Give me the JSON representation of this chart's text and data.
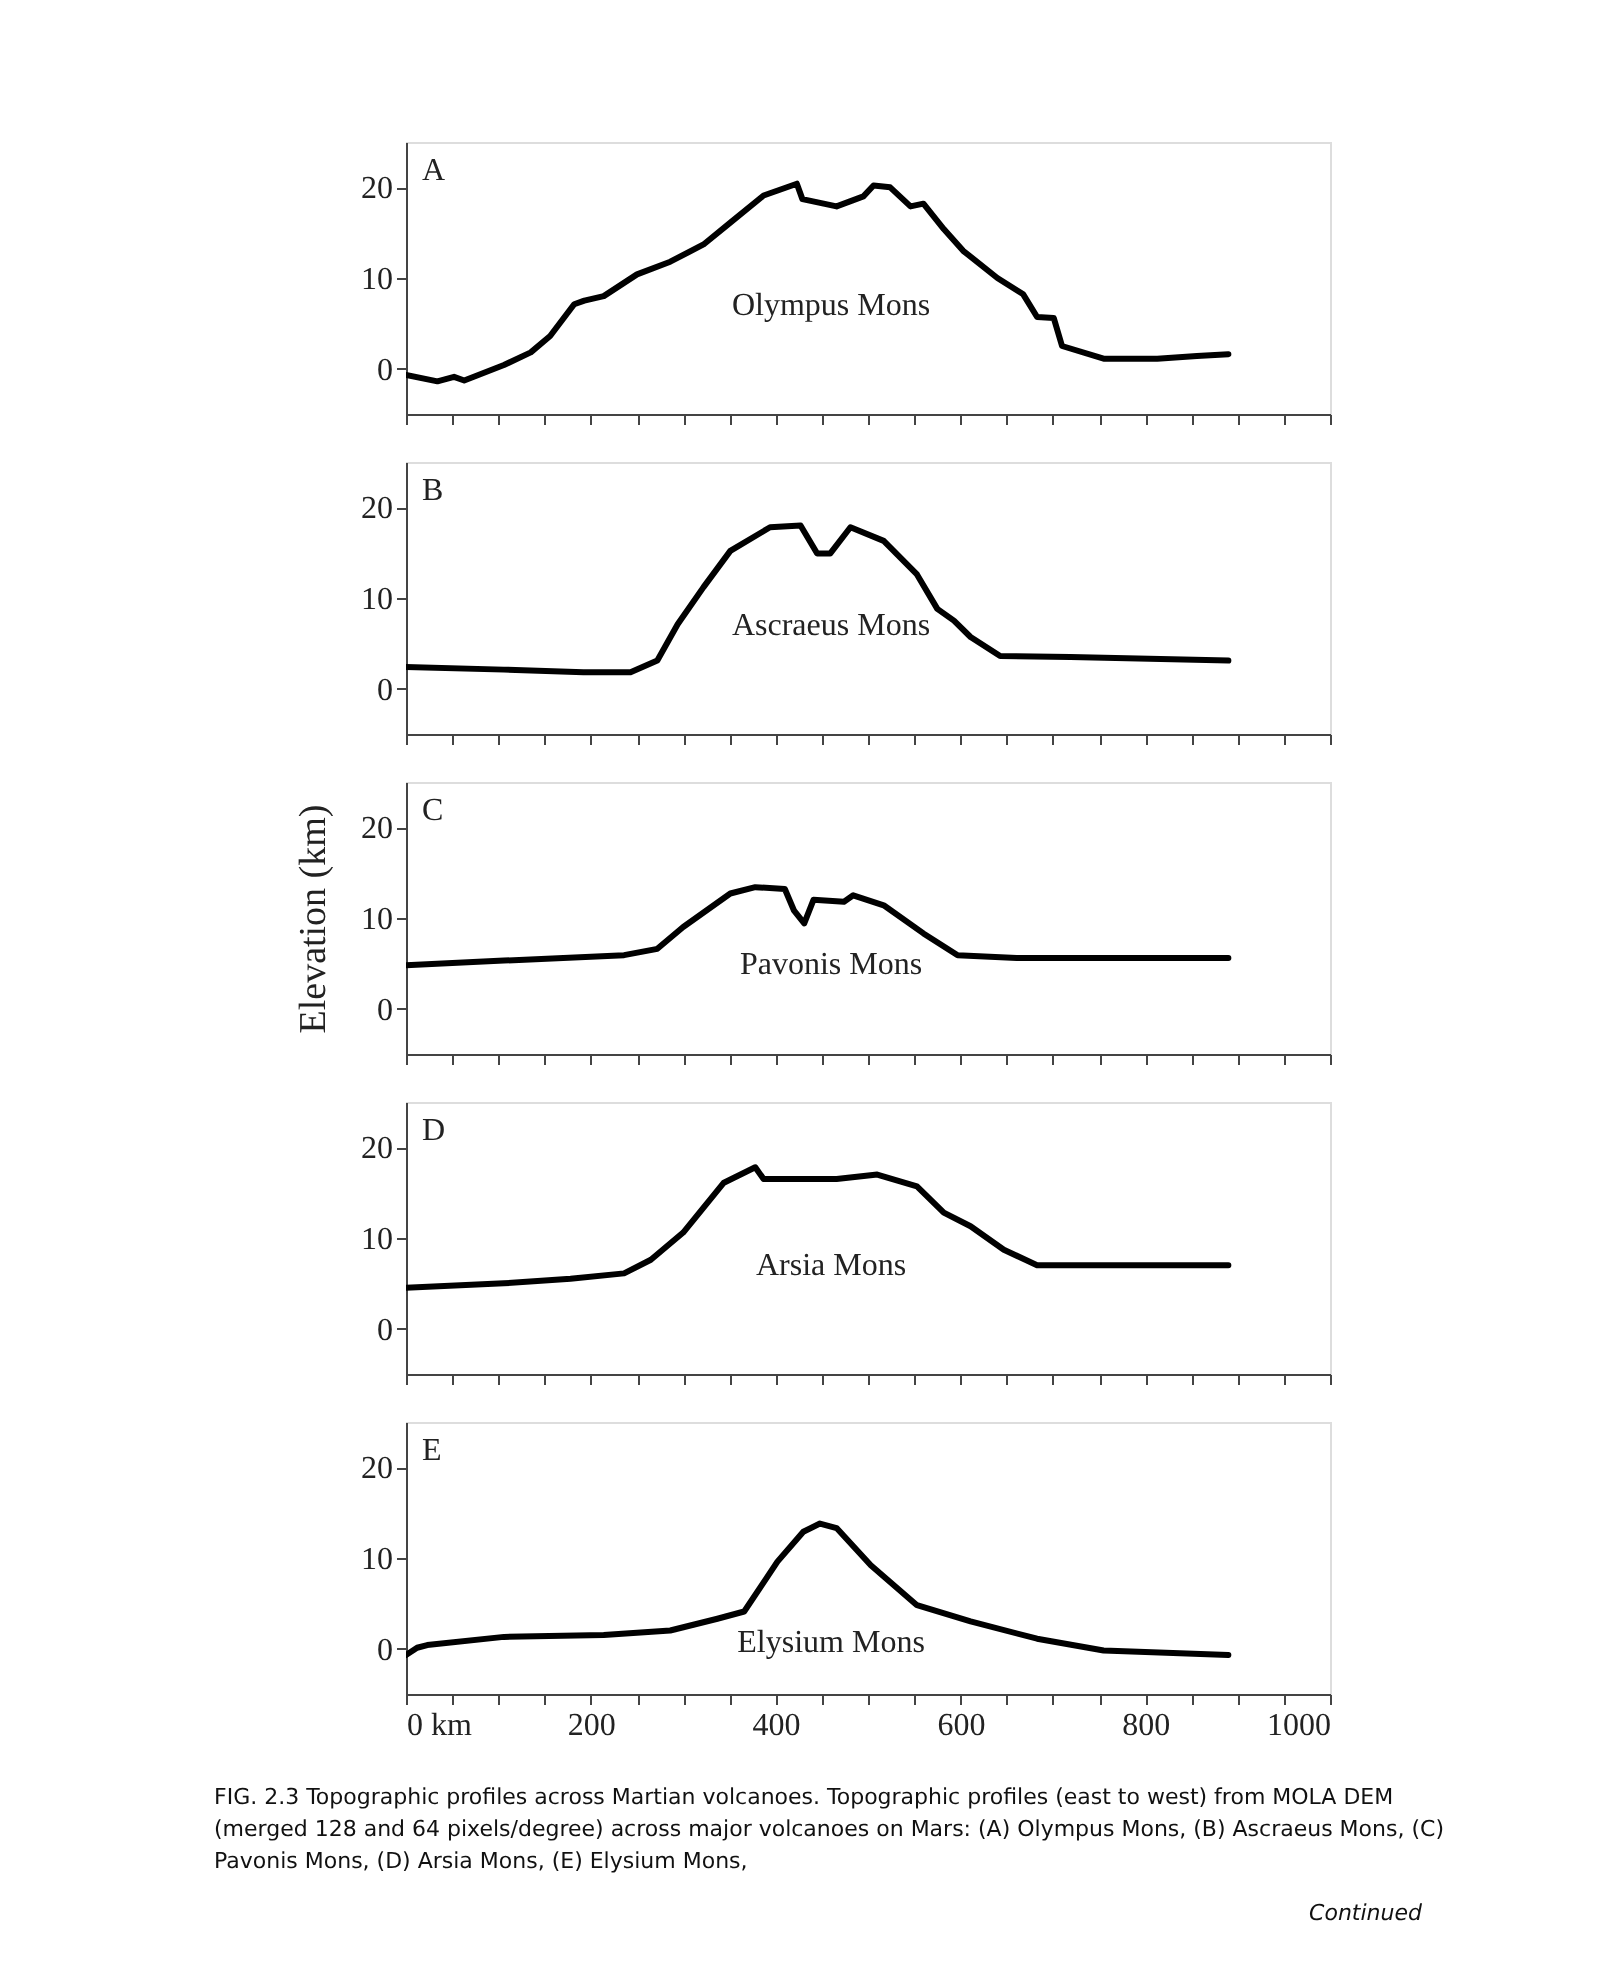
{
  "chart_data": [
    {
      "type": "line",
      "xlim": [
        0,
        1000
      ],
      "ylim": [
        -5,
        25
      ],
      "yticks": [
        0,
        10,
        20
      ],
      "tick_labels": "y",
      "grid": false,
      "xticks": [
        0,
        {
          "value": 50,
          "label": null
        },
        {
          "value": 100,
          "label": null
        },
        {
          "value": 150,
          "label": null
        },
        200,
        {
          "value": 250,
          "label": null
        },
        {
          "value": 300,
          "label": null
        },
        {
          "value": 350,
          "label": null
        },
        400,
        {
          "value": 450,
          "label": null
        },
        {
          "value": 500,
          "label": null
        },
        {
          "value": 550,
          "label": null
        },
        600,
        {
          "value": 650,
          "label": null
        },
        {
          "value": 700,
          "label": null
        },
        {
          "value": 750,
          "label": null
        },
        800,
        {
          "value": 850,
          "label": null
        },
        {
          "value": 900,
          "label": null
        },
        {
          "value": 950,
          "label": null
        },
        1000
      ],
      "annotations": [
        "A",
        "Olympus Mons"
      ],
      "series": [
        {
          "color": "#000000",
          "x": [
            0,
            34,
            52,
            63,
            106,
            135,
            156,
            182,
            193,
            214,
            250,
            286,
            322,
            351,
            387,
            423,
            429,
            466,
            495,
            506,
            524,
            546,
            560,
            582,
            603,
            640,
            668,
            683,
            701,
            710,
            755,
            813,
            856,
            890
          ],
          "values": [
            -0.7,
            -1.4,
            -0.9,
            -1.3,
            0.4,
            1.8,
            3.6,
            7.1,
            7.5,
            8,
            10.4,
            11.8,
            13.7,
            16.1,
            19.1,
            20.4,
            18.7,
            17.9,
            19,
            20.2,
            20,
            17.9,
            18.2,
            15.4,
            13,
            10,
            8.2,
            5.7,
            5.6,
            2.5,
            1.1,
            1.1,
            1.4,
            1.6
          ]
        }
      ]
    },
    {
      "type": "line",
      "xlim": [
        0,
        1000
      ],
      "ylim": [
        -5,
        25
      ],
      "yticks": [
        0,
        10,
        20
      ],
      "tick_labels": "y",
      "grid": false,
      "xticks": [
        0,
        {
          "value": 50,
          "label": null
        },
        {
          "value": 100,
          "label": null
        },
        {
          "value": 150,
          "label": null
        },
        200,
        {
          "value": 250,
          "label": null
        },
        {
          "value": 300,
          "label": null
        },
        {
          "value": 350,
          "label": null
        },
        400,
        {
          "value": 450,
          "label": null
        },
        {
          "value": 500,
          "label": null
        },
        {
          "value": 550,
          "label": null
        },
        600,
        {
          "value": 650,
          "label": null
        },
        {
          "value": 700,
          "label": null
        },
        {
          "value": 750,
          "label": null
        },
        800,
        {
          "value": 850,
          "label": null
        },
        {
          "value": 900,
          "label": null
        },
        {
          "value": 950,
          "label": null
        },
        1000
      ],
      "annotations": [
        "B",
        "Ascraeus Mons"
      ],
      "series": [
        {
          "color": "#000000",
          "x": [
            0,
            106,
            192,
            243,
            272,
            294,
            322,
            351,
            394,
            427,
            445,
            459,
            481,
            517,
            553,
            575,
            593,
            611,
            643,
            719,
            890
          ],
          "values": [
            2.4,
            2.1,
            1.8,
            1.8,
            3.1,
            7.1,
            11.2,
            15.2,
            17.8,
            18,
            14.9,
            14.9,
            17.8,
            16.3,
            12.6,
            8.8,
            7.5,
            5.7,
            3.6,
            3.5,
            3.1
          ]
        }
      ]
    },
    {
      "type": "line",
      "xlim": [
        0,
        1000
      ],
      "ylim": [
        -5,
        25
      ],
      "yticks": [
        0,
        10,
        20
      ],
      "tick_labels": "y",
      "grid": false,
      "ylabel": "Elevation (km)",
      "xticks": [
        0,
        {
          "value": 50,
          "label": null
        },
        {
          "value": 100,
          "label": null
        },
        {
          "value": 150,
          "label": null
        },
        200,
        {
          "value": 250,
          "label": null
        },
        {
          "value": 300,
          "label": null
        },
        {
          "value": 350,
          "label": null
        },
        400,
        {
          "value": 450,
          "label": null
        },
        {
          "value": 500,
          "label": null
        },
        {
          "value": 550,
          "label": null
        },
        600,
        {
          "value": 650,
          "label": null
        },
        {
          "value": 700,
          "label": null
        },
        {
          "value": 750,
          "label": null
        },
        800,
        {
          "value": 850,
          "label": null
        },
        {
          "value": 900,
          "label": null
        },
        {
          "value": 950,
          "label": null
        },
        1000
      ],
      "annotations": [
        "C",
        "Pavonis Mons"
      ],
      "series": [
        {
          "color": "#000000",
          "x": [
            0,
            106,
            236,
            272,
            300,
            351,
            378,
            410,
            420,
            431,
            441,
            474,
            484,
            517,
            560,
            597,
            661,
            890
          ],
          "values": [
            4.8,
            5.3,
            5.9,
            6.6,
            9,
            12.7,
            13.4,
            13.2,
            10.8,
            9.4,
            12,
            11.8,
            12.5,
            11.4,
            8.3,
            5.9,
            5.6,
            5.6
          ]
        }
      ]
    },
    {
      "type": "line",
      "xlim": [
        0,
        1000
      ],
      "ylim": [
        -5,
        25
      ],
      "yticks": [
        0,
        10,
        20
      ],
      "tick_labels": "y",
      "grid": false,
      "xticks": [
        0,
        {
          "value": 50,
          "label": null
        },
        {
          "value": 100,
          "label": null
        },
        {
          "value": 150,
          "label": null
        },
        200,
        {
          "value": 250,
          "label": null
        },
        {
          "value": 300,
          "label": null
        },
        {
          "value": 350,
          "label": null
        },
        400,
        {
          "value": 450,
          "label": null
        },
        {
          "value": 500,
          "label": null
        },
        {
          "value": 550,
          "label": null
        },
        600,
        {
          "value": 650,
          "label": null
        },
        {
          "value": 700,
          "label": null
        },
        {
          "value": 750,
          "label": null
        },
        800,
        {
          "value": 850,
          "label": null
        },
        {
          "value": 900,
          "label": null
        },
        {
          "value": 950,
          "label": null
        },
        1000
      ],
      "annotations": [
        "D",
        "Arsia Mons"
      ],
      "series": [
        {
          "color": "#000000",
          "x": [
            0,
            106,
            178,
            236,
            265,
            300,
            344,
            378,
            387,
            466,
            510,
            553,
            582,
            611,
            647,
            683,
            890
          ],
          "values": [
            4.5,
            5,
            5.5,
            6.1,
            7.6,
            10.6,
            16.1,
            17.8,
            16.5,
            16.5,
            17,
            15.7,
            12.8,
            11.3,
            8.7,
            7,
            7
          ]
        }
      ]
    },
    {
      "type": "line",
      "xlim": [
        0,
        1000
      ],
      "ylim": [
        -5,
        25
      ],
      "yticks": [
        0,
        10,
        20
      ],
      "grid": false,
      "xticks": [
        {
          "value": 0,
          "label": "0 km"
        },
        {
          "value": 50,
          "label": null
        },
        {
          "value": 100,
          "label": null
        },
        {
          "value": 150,
          "label": null
        },
        200,
        {
          "value": 250,
          "label": null
        },
        {
          "value": 300,
          "label": null
        },
        {
          "value": 350,
          "label": null
        },
        400,
        {
          "value": 450,
          "label": null
        },
        {
          "value": 500,
          "label": null
        },
        {
          "value": 550,
          "label": null
        },
        600,
        {
          "value": 650,
          "label": null
        },
        {
          "value": 700,
          "label": null
        },
        {
          "value": 750,
          "label": null
        },
        800,
        {
          "value": 850,
          "label": null
        },
        {
          "value": 900,
          "label": null
        },
        {
          "value": 950,
          "label": null
        },
        1000
      ],
      "annotations": [
        "E",
        "Elysium Mons",
        "FIG. 2.3  Topographic profiles across Martian volcanoes. Topographic profiles (east to west) from MOLA DEM (merged 128 and 64 pixels/degree) across major volcanoes on Mars: (A) Olympus Mons, (B) Ascraeus Mons, (C) Pavonis Mons, (D) Arsia Mons, (E) Elysium Mons,",
        "Continued"
      ],
      "series": [
        {
          "color": "#000000",
          "x": [
            0,
            12,
            23,
            106,
            214,
            286,
            337,
            366,
            402,
            430,
            448,
            466,
            503,
            553,
            611,
            683,
            755,
            890
          ],
          "values": [
            -0.7,
            0.1,
            0.4,
            1.3,
            1.5,
            2,
            3.3,
            4.1,
            9.6,
            12.9,
            13.8,
            13.3,
            9.2,
            4.8,
            3,
            1.1,
            -0.2,
            -0.7
          ]
        }
      ]
    }
  ]
}
